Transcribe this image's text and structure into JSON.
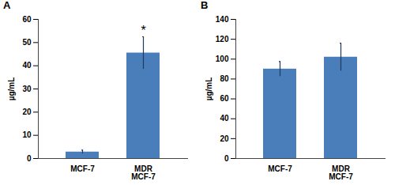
{
  "chart_data": [
    {
      "type": "bar",
      "title": "A",
      "categories": [
        "MCF-7",
        "MDR\nMCF-7"
      ],
      "values": [
        2.8,
        45.5
      ],
      "errors": [
        0.8,
        7.0
      ],
      "color": "#4a7ebb",
      "y_label": "µg/mL",
      "ylim": [
        0,
        60
      ],
      "yticks": [
        0,
        10,
        20,
        30,
        40,
        50,
        60
      ],
      "grid": false,
      "annotations": [
        {
          "text": "*",
          "category": "MDR\nMCF-7"
        }
      ]
    },
    {
      "type": "bar",
      "title": "B",
      "categories": [
        "MCF-7",
        "MDR\nMCF-7"
      ],
      "values": [
        90,
        102
      ],
      "errors": [
        7.5,
        14.0
      ],
      "color": "#4a7ebb",
      "y_label": "µg/mL",
      "ylim": [
        0,
        140
      ],
      "yticks": [
        0,
        20,
        40,
        60,
        80,
        100,
        120,
        140
      ],
      "grid": false
    }
  ]
}
